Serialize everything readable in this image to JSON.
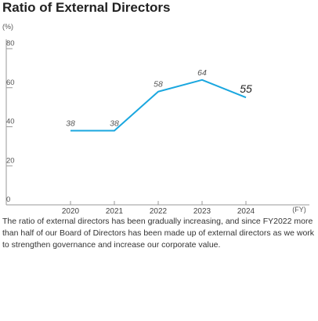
{
  "chart_data": {
    "type": "line",
    "title": "Ratio of External Directors",
    "y_unit": "(%)",
    "x_unit": "(FY)",
    "ylim": [
      0,
      80
    ],
    "yticks": [
      0,
      20,
      40,
      60,
      80
    ],
    "grid": false,
    "categories": [
      "2020",
      "2021",
      "2022",
      "2023",
      "2024"
    ],
    "series": [
      {
        "values": [
          38,
          38,
          58,
          64,
          55
        ]
      }
    ],
    "data_labels": [
      "38",
      "38",
      "58",
      "64",
      "55"
    ],
    "highlight_index": 4,
    "colors": {
      "line": "#1aa7df",
      "axis": "#999999",
      "label": "#555555",
      "highlight_label": "#222222"
    }
  },
  "caption": "The ratio of external directors has been gradually increasing, and since FY2022 more than half of our Board of Directors has been made up of external directors as we work to strengthen governance and increase our corporate value."
}
